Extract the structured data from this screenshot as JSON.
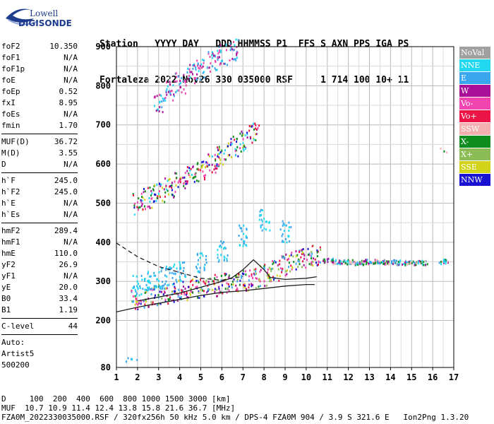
{
  "logo": {
    "line1": "Lowell",
    "line2": "DIGISONDE",
    "color": "#1e3c8c"
  },
  "header": {
    "labels": "Station   YYYY DAY   DDD HHMMSS P1  FFS S AXN PPS IGA PS",
    "values": "Fortaleza 2022 Nov26 330 035000 RSF     1 714 100 10+ 11"
  },
  "params": [
    {
      "label": "foF2",
      "value": "10.350"
    },
    {
      "label": "foF1",
      "value": "N/A"
    },
    {
      "label": "foF1p",
      "value": "N/A"
    },
    {
      "label": "foE",
      "value": "N/A"
    },
    {
      "label": "foEp",
      "value": "0.52"
    },
    {
      "label": "fxI",
      "value": "8.95"
    },
    {
      "label": "foEs",
      "value": "N/A"
    },
    {
      "label": "fmin",
      "value": "1.70"
    },
    {
      "sep": true
    },
    {
      "label": "MUF(D)",
      "value": "36.72"
    },
    {
      "label": "M(D)",
      "value": "3.55"
    },
    {
      "label": "D",
      "value": "N/A"
    },
    {
      "sep": true
    },
    {
      "label": "h`F",
      "value": "245.0"
    },
    {
      "label": "h`F2",
      "value": "245.0"
    },
    {
      "label": "h`E",
      "value": "N/A"
    },
    {
      "label": "h`Es",
      "value": "N/A"
    },
    {
      "sep": true
    },
    {
      "label": "hmF2",
      "value": "289.4"
    },
    {
      "label": "hmF1",
      "value": "N/A"
    },
    {
      "label": "hmE",
      "value": "110.0"
    },
    {
      "label": "yF2",
      "value": "26.9"
    },
    {
      "label": "yF1",
      "value": "N/A"
    },
    {
      "label": "yE",
      "value": "20.0"
    },
    {
      "label": "B0",
      "value": "33.4"
    },
    {
      "label": "B1",
      "value": "1.19"
    },
    {
      "sep": true
    },
    {
      "label": "C-level",
      "value": "44"
    },
    {
      "sep": true
    },
    {
      "text": "Auto:"
    },
    {
      "text": "Artist5"
    },
    {
      "text": "500200"
    }
  ],
  "legend": [
    {
      "label": "NoVal",
      "color": "#a0a0a0"
    },
    {
      "label": "NNE",
      "color": "#22d8f0"
    },
    {
      "label": "E",
      "color": "#3aa6ee"
    },
    {
      "label": "W",
      "color": "#a8109a"
    },
    {
      "label": "Vo-",
      "color": "#f044b0"
    },
    {
      "label": "Vo+",
      "color": "#ec1446"
    },
    {
      "label": "SSW",
      "color": "#f4b0b0"
    },
    {
      "label": "X-",
      "color": "#0e8c1e"
    },
    {
      "label": "X+",
      "color": "#8cbc56"
    },
    {
      "label": "SSE",
      "color": "#d2d218"
    },
    {
      "label": "NNW",
      "color": "#1a12d2"
    }
  ],
  "footer": {
    "line1": "D     100  200  400  600  800 1000 1500 3000 [km]",
    "line2": "MUF  10.7 10.9 11.4 12.4 13.8 15.8 21.6 36.7 [MHz]",
    "line3": "FZA0M_2022330035000.RSF / 320fx256h 50 kHz 5.0 km / DPS-4 FZA0M 904 / 3.9 S 321.6 E   Ion2Png 1.3.20"
  },
  "chart_data": {
    "type": "scatter",
    "xlabel": "",
    "ylabel": "",
    "xlim": [
      1,
      17
    ],
    "ylim": [
      80,
      900
    ],
    "xticks": [
      1,
      2,
      3,
      4,
      5,
      6,
      7,
      8,
      9,
      10,
      11,
      12,
      13,
      14,
      15,
      16,
      17
    ],
    "yticks": [
      80,
      200,
      300,
      400,
      500,
      600,
      700,
      800,
      900
    ],
    "grid": true,
    "legend_position": "right",
    "clusters": [
      {
        "name": "",
        "color_mix": [
          "#ec1446",
          "#f044b0",
          "#a8109a",
          "#1a12d2",
          "#3aa6ee",
          "#0e8c1e",
          "#d2d218",
          "#8cbc56"
        ],
        "points": [
          [
            1.9,
            255
          ],
          [
            2.5,
            262
          ],
          [
            3.0,
            268
          ],
          [
            3.5,
            272
          ],
          [
            4.0,
            278
          ],
          [
            4.5,
            282
          ],
          [
            5.0,
            288
          ],
          [
            5.5,
            292
          ],
          [
            6.0,
            296
          ],
          [
            6.5,
            300
          ],
          [
            7.0,
            305
          ],
          [
            7.5,
            310
          ],
          [
            8.0,
            318
          ],
          [
            8.5,
            330
          ],
          [
            9.0,
            345
          ],
          [
            9.5,
            355
          ],
          [
            10.0,
            365
          ],
          [
            10.4,
            370
          ]
        ]
      },
      {
        "name": "",
        "color_mix": [
          "#22d8f0",
          "#3aa6ee"
        ],
        "points": [
          [
            2.0,
            290
          ],
          [
            2.5,
            300
          ],
          [
            3.0,
            310
          ],
          [
            3.5,
            320
          ],
          [
            4.0,
            330
          ],
          [
            5.0,
            350
          ],
          [
            6.0,
            380
          ],
          [
            7.0,
            420
          ],
          [
            8.0,
            460
          ],
          [
            9.0,
            430
          ]
        ]
      },
      {
        "name": "",
        "color_mix": [
          "#f044b0",
          "#a8109a",
          "#1a12d2",
          "#0e8c1e",
          "#d2d218",
          "#22d8f0",
          "#ec1446"
        ],
        "points": [
          [
            2.0,
            500
          ],
          [
            2.5,
            515
          ],
          [
            3.0,
            525
          ],
          [
            3.5,
            540
          ],
          [
            4.0,
            555
          ],
          [
            4.5,
            570
          ],
          [
            5.0,
            585
          ],
          [
            5.5,
            605
          ],
          [
            6.0,
            625
          ],
          [
            6.5,
            645
          ],
          [
            7.0,
            660
          ],
          [
            7.5,
            680
          ]
        ]
      },
      {
        "name": "",
        "color_mix": [
          "#f044b0",
          "#a8109a",
          "#22d8f0",
          "#3aa6ee"
        ],
        "points": [
          [
            3.0,
            760
          ],
          [
            3.5,
            790
          ],
          [
            4.0,
            810
          ],
          [
            4.5,
            830
          ],
          [
            5.0,
            845
          ],
          [
            5.5,
            865
          ],
          [
            6.0,
            880
          ],
          [
            6.5,
            895
          ]
        ]
      },
      {
        "name": "",
        "color_mix": [
          "#22d8f0",
          "#3aa6ee",
          "#a8109a",
          "#f4b0b0",
          "#0e8c1e"
        ],
        "points": [
          [
            11.0,
            355
          ],
          [
            11.5,
            352
          ],
          [
            12.0,
            352
          ],
          [
            12.5,
            350
          ],
          [
            13.0,
            352
          ],
          [
            13.5,
            352
          ],
          [
            14.0,
            351
          ],
          [
            14.5,
            350
          ],
          [
            15.0,
            350
          ],
          [
            15.5,
            350
          ],
          [
            16.5,
            352
          ],
          [
            16.5,
            636
          ]
        ]
      },
      {
        "name": "",
        "color_mix": [
          "#3aa6ee",
          "#22d8f0"
        ],
        "points": [
          [
            1.6,
            103
          ],
          [
            1.8,
            103
          ]
        ]
      }
    ],
    "curves": [
      {
        "name": "",
        "style": "dashed",
        "points": [
          [
            1,
            398
          ],
          [
            2,
            363
          ],
          [
            3,
            338
          ],
          [
            4,
            323
          ],
          [
            5,
            308
          ],
          [
            6,
            303
          ],
          [
            7,
            313
          ]
        ]
      },
      {
        "name": "",
        "style": "solid",
        "points": [
          [
            1,
            222
          ],
          [
            2,
            234
          ],
          [
            3,
            244
          ],
          [
            4,
            254
          ],
          [
            5,
            264
          ],
          [
            6,
            272
          ],
          [
            7,
            276
          ],
          [
            8,
            282
          ],
          [
            9,
            288
          ],
          [
            10,
            292
          ],
          [
            10.4,
            292
          ]
        ]
      },
      {
        "name": "",
        "style": "solid",
        "points": [
          [
            2,
            250
          ],
          [
            3,
            260
          ],
          [
            4,
            270
          ],
          [
            5,
            285
          ],
          [
            6,
            300
          ],
          [
            6.5,
            310
          ],
          [
            7,
            330
          ],
          [
            7.5,
            355
          ],
          [
            8,
            330
          ],
          [
            8.3,
            310
          ],
          [
            9,
            305
          ],
          [
            10,
            308
          ],
          [
            10.5,
            312
          ]
        ]
      }
    ]
  }
}
